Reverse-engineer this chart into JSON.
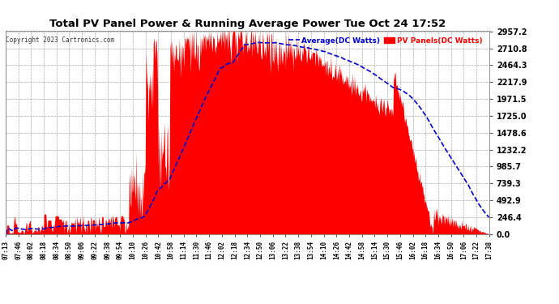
{
  "title": "Total PV Panel Power & Running Average Power Tue Oct 24 17:52",
  "copyright": "Copyright 2023 Cartronics.com",
  "legend_avg": "Average(DC Watts)",
  "legend_pv": "PV Panels(DC Watts)",
  "bg_color": "#ffffff",
  "plot_bg_color": "#ffffff",
  "grid_color": "#aaaaaa",
  "pv_color": "#ff0000",
  "avg_color": "#0000cc",
  "title_color": "#000000",
  "copyright_color": "#555555",
  "ytick_color": "#000000",
  "xtick_color": "#000000",
  "ymin": 0.0,
  "ymax": 2957.2,
  "yticks": [
    0.0,
    246.4,
    492.9,
    739.3,
    985.7,
    1232.2,
    1478.6,
    1725.0,
    1971.5,
    2217.9,
    2464.3,
    2710.8,
    2957.2
  ],
  "xtick_labels": [
    "07:13",
    "07:46",
    "08:02",
    "08:18",
    "08:34",
    "08:50",
    "09:06",
    "09:22",
    "09:38",
    "09:54",
    "10:10",
    "10:26",
    "10:42",
    "10:58",
    "11:14",
    "11:30",
    "11:46",
    "12:02",
    "12:18",
    "12:34",
    "12:50",
    "13:06",
    "13:22",
    "13:38",
    "13:54",
    "14:10",
    "14:26",
    "14:42",
    "14:58",
    "15:14",
    "15:30",
    "15:46",
    "16:02",
    "16:18",
    "16:34",
    "16:50",
    "17:06",
    "17:22",
    "17:38"
  ],
  "num_points": 780
}
